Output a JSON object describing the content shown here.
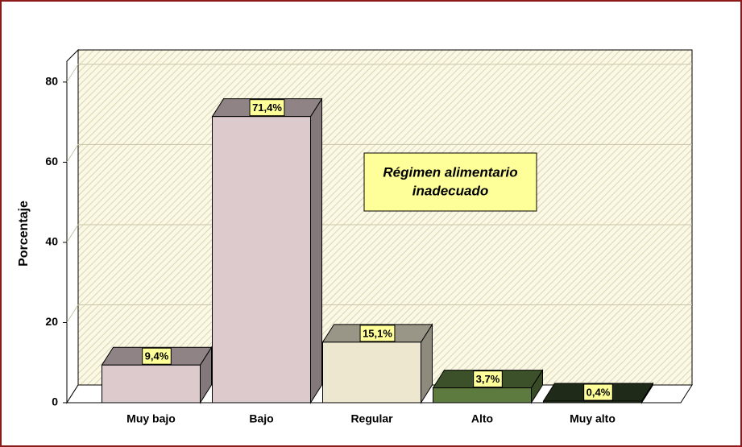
{
  "chart_data": {
    "type": "bar3d",
    "ylabel": "Porcentaje",
    "annotation": [
      "Régimen alimentario",
      "inadecuado"
    ],
    "categories": [
      "Muy bajo",
      "Bajo",
      "Regular",
      "Alto",
      "Muy alto"
    ],
    "values": [
      9.4,
      71.4,
      15.1,
      3.7,
      0.4
    ],
    "value_labels": [
      "9,4%",
      "71,4%",
      "15,1%",
      "3,7%",
      "0,4%"
    ],
    "colors": [
      "#dccacc",
      "#dccacc",
      "#ede7d0",
      "#5d7b3f",
      "#2f4125"
    ],
    "ylim": [
      0,
      85
    ],
    "yticks": [
      0,
      20,
      40,
      60,
      80
    ],
    "grid": true
  }
}
